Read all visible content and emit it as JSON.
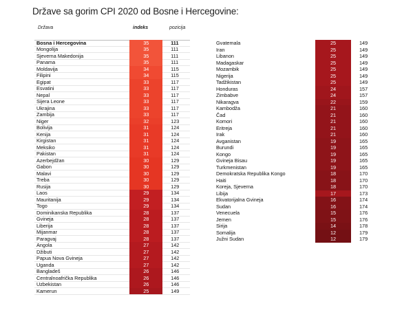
{
  "title": "Države sa gorim CPI 2020 od Bosne i Hercegovine:",
  "headers": {
    "country": "Država",
    "index": "indeks",
    "rank": "pozicija"
  },
  "colors": {
    "c35": "#f2543a",
    "c34": "#f04a32",
    "c33": "#ec432c",
    "c32": "#ea3f2a",
    "c31": "#e83a27",
    "c30": "#e53623",
    "c29": "#c21f22",
    "c28": "#bb1c20",
    "c27": "#b41a1f",
    "c26": "#ad181e",
    "c25": "#a6171d",
    "c24": "#a0161c",
    "c22": "#99151b",
    "c21": "#93141a",
    "c19": "#8e1419",
    "c18": "#881318",
    "c16": "#831217",
    "c15": "#7f1216",
    "c14": "#7a1115",
    "c12": "#741014"
  },
  "left_rows": [
    {
      "country": "Bosna i Hercegovina",
      "index": "35",
      "rank": "111"
    },
    {
      "country": "Mongolija",
      "index": "35",
      "rank": "111"
    },
    {
      "country": "Sjeverna Makedonija",
      "index": "35",
      "rank": "111"
    },
    {
      "country": "Panama",
      "index": "35",
      "rank": "111"
    },
    {
      "country": "Moldavija",
      "index": "34",
      "rank": "115"
    },
    {
      "country": "Filipini",
      "index": "34",
      "rank": "115"
    },
    {
      "country": "Egipat",
      "index": "33",
      "rank": "117"
    },
    {
      "country": "Esvatini",
      "index": "33",
      "rank": "117"
    },
    {
      "country": "Nepal",
      "index": "33",
      "rank": "117"
    },
    {
      "country": "Sijera Leone",
      "index": "33",
      "rank": "117"
    },
    {
      "country": "Ukrajina",
      "index": "33",
      "rank": "117"
    },
    {
      "country": "Zambija",
      "index": "33",
      "rank": "117"
    },
    {
      "country": "Niger",
      "index": "32",
      "rank": "123"
    },
    {
      "country": "Bolivija",
      "index": "31",
      "rank": "124"
    },
    {
      "country": "Kenija",
      "index": "31",
      "rank": "124"
    },
    {
      "country": "Kirgistan",
      "index": "31",
      "rank": "124"
    },
    {
      "country": "Meksiko",
      "index": "31",
      "rank": "124"
    },
    {
      "country": "Pakistan",
      "index": "31",
      "rank": "124"
    },
    {
      "country": "Azerbejdžan",
      "index": "30",
      "rank": "129"
    },
    {
      "country": "Gabon",
      "index": "30",
      "rank": "129"
    },
    {
      "country": "Malavi",
      "index": "30",
      "rank": "129"
    },
    {
      "country": "Treba",
      "index": "30",
      "rank": "129"
    },
    {
      "country": "Rusija",
      "index": "30",
      "rank": "129"
    },
    {
      "country": "Laos",
      "index": "29",
      "rank": "134"
    },
    {
      "country": "Mauritanija",
      "index": "29",
      "rank": "134"
    },
    {
      "country": "Togo",
      "index": "29",
      "rank": "134"
    },
    {
      "country": "Dominikanska Republika",
      "index": "28",
      "rank": "137"
    },
    {
      "country": "Gvineja",
      "index": "28",
      "rank": "137"
    },
    {
      "country": "Liberija",
      "index": "28",
      "rank": "137"
    },
    {
      "country": "Mijanmar",
      "index": "28",
      "rank": "137"
    },
    {
      "country": "Paragvaj",
      "index": "28",
      "rank": "137"
    },
    {
      "country": "Angola",
      "index": "27",
      "rank": "142"
    },
    {
      "country": "Džibuti",
      "index": "27",
      "rank": "142"
    },
    {
      "country": "Papua Nova Gvineja",
      "index": "27",
      "rank": "142"
    },
    {
      "country": "Uganda",
      "index": "27",
      "rank": "142"
    },
    {
      "country": "Bangladeš",
      "index": "26",
      "rank": "146"
    },
    {
      "country": "Centralnoafrička Republika",
      "index": "26",
      "rank": "146"
    },
    {
      "country": "Uzbekistan",
      "index": "26",
      "rank": "146"
    },
    {
      "country": "Kamerun",
      "index": "25",
      "rank": "149"
    }
  ],
  "right_rows": [
    {
      "country": "Gvatemala",
      "index": "25",
      "rank": "149"
    },
    {
      "country": "Iran",
      "index": "25",
      "rank": "149"
    },
    {
      "country": "Libanon",
      "index": "25",
      "rank": "149"
    },
    {
      "country": "Madagaskar",
      "index": "25",
      "rank": "149"
    },
    {
      "country": "Mozambik",
      "index": "25",
      "rank": "149"
    },
    {
      "country": "Nigerija",
      "index": "25",
      "rank": "149"
    },
    {
      "country": "Tadžikistan",
      "index": "25",
      "rank": "149"
    },
    {
      "country": "Honduras",
      "index": "24",
      "rank": "157"
    },
    {
      "country": "Zimbabve",
      "index": "24",
      "rank": "157"
    },
    {
      "country": "Nikaragva",
      "index": "22",
      "rank": "159"
    },
    {
      "country": "Kambodža",
      "index": "21",
      "rank": "160"
    },
    {
      "country": "Čad",
      "index": "21",
      "rank": "160"
    },
    {
      "country": "Komori",
      "index": "21",
      "rank": "160"
    },
    {
      "country": "Eritreja",
      "index": "21",
      "rank": "160"
    },
    {
      "country": "Irak",
      "index": "21",
      "rank": "160"
    },
    {
      "country": "Avganistan",
      "index": "19",
      "rank": "165"
    },
    {
      "country": "Burundi",
      "index": "19",
      "rank": "165"
    },
    {
      "country": "Kongo",
      "index": "19",
      "rank": "165"
    },
    {
      "country": "Gvineja Bisau",
      "index": "19",
      "rank": "165"
    },
    {
      "country": "Turkmenistan",
      "index": "19",
      "rank": "165"
    },
    {
      "country": "Demokratska Republika Kongo",
      "index": "18",
      "rank": "170"
    },
    {
      "country": "Haiti",
      "index": "18",
      "rank": "170"
    },
    {
      "country": "Koreja, Sjeverna",
      "index": "18",
      "rank": "170"
    },
    {
      "country": "Libija",
      "index": "17",
      "rank": "173"
    },
    {
      "country": "Ekvatorijalna Gvineja",
      "index": "16",
      "rank": "174"
    },
    {
      "country": "Sudan",
      "index": "16",
      "rank": "174"
    },
    {
      "country": "Venecuela",
      "index": "15",
      "rank": "176"
    },
    {
      "country": "Jemen",
      "index": "15",
      "rank": "176"
    },
    {
      "country": "Sirija",
      "index": "14",
      "rank": "178"
    },
    {
      "country": "Somalija",
      "index": "12",
      "rank": "179"
    },
    {
      "country": "Južni Sudan",
      "index": "12",
      "rank": "179"
    }
  ]
}
